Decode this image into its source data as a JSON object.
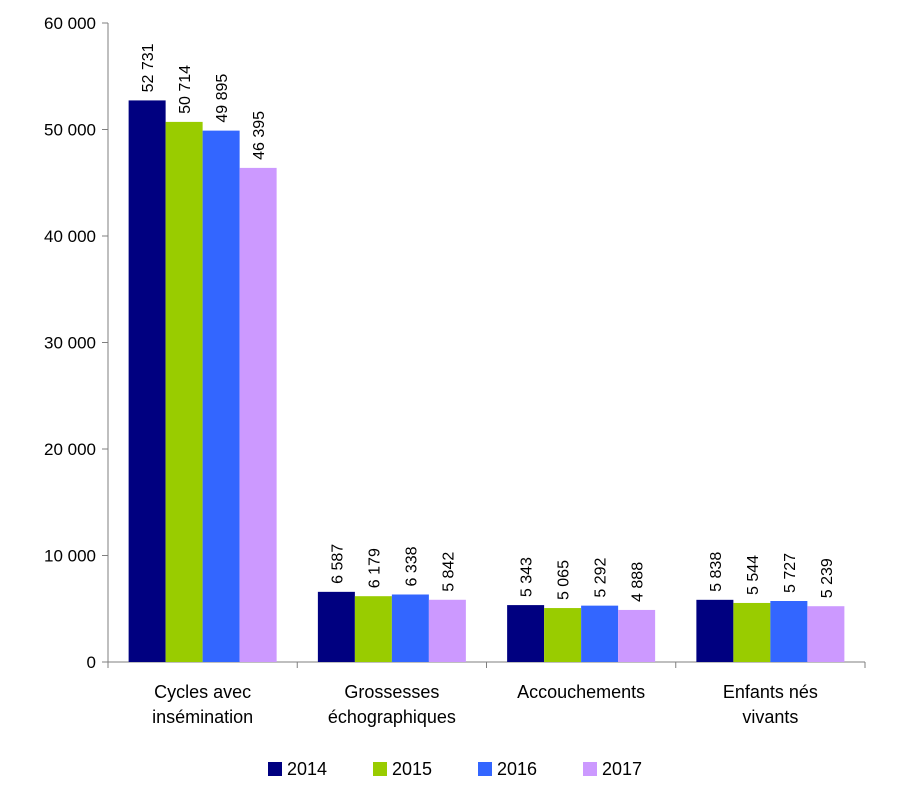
{
  "chart_data": {
    "type": "bar",
    "title": "",
    "xlabel": "",
    "ylabel": "",
    "ylim": [
      0,
      60000
    ],
    "yticks": [
      0,
      10000,
      20000,
      30000,
      40000,
      50000,
      60000
    ],
    "ytick_labels": [
      "0",
      "10 000",
      "20 000",
      "30 000",
      "40 000",
      "50 000",
      "60 000"
    ],
    "categories": [
      [
        "Cycles avec",
        "insémination"
      ],
      [
        "Grossesses",
        "échographiques"
      ],
      [
        "Accouchements"
      ],
      [
        "Enfants nés",
        "vivants"
      ]
    ],
    "series": [
      {
        "name": "2014",
        "color": "#000080",
        "values": [
          52731,
          6587,
          5343,
          5838
        ],
        "labels": [
          "52 731",
          "6 587",
          "5 343",
          "5 838"
        ]
      },
      {
        "name": "2015",
        "color": "#99CC00",
        "values": [
          50714,
          6179,
          5065,
          5544
        ],
        "labels": [
          "50 714",
          "6 179",
          "5 065",
          "5 544"
        ]
      },
      {
        "name": "2016",
        "color": "#3366FF",
        "values": [
          49895,
          6338,
          5292,
          5727
        ],
        "labels": [
          "49 895",
          "6 338",
          "5 292",
          "5 727"
        ]
      },
      {
        "name": "2017",
        "color": "#CC99FF",
        "values": [
          46395,
          5842,
          4888,
          5239
        ],
        "labels": [
          "46 395",
          "5 842",
          "4 888",
          "5 239"
        ]
      }
    ],
    "grid": false,
    "legend_position": "bottom"
  }
}
